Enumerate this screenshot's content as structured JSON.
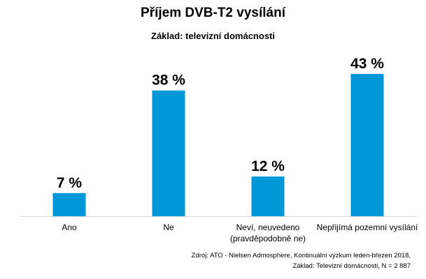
{
  "chart_data": {
    "type": "bar",
    "title": "Příjem DVB-T2 vysílání",
    "subtitle": "Základ: televizní domácnosti",
    "categories": [
      [
        "Ano"
      ],
      [
        "Ne"
      ],
      [
        "Neví, neuvedeno",
        "(pravděpodobně ne)"
      ],
      [
        "Nepřijímá pozemní vysílání"
      ]
    ],
    "values": [
      7,
      38,
      12,
      43
    ],
    "data_labels": [
      "7 %",
      "38 %",
      "12 %",
      "43 %"
    ],
    "ylim": [
      0,
      43
    ],
    "grid": false,
    "legend": "none",
    "bar_color": "#0097d8",
    "baseline_color": "#d9d9d9",
    "xlabel": "",
    "ylabel": ""
  },
  "source": {
    "line1": "Zdroj: ATO - Nielsen Admosphere, Kontinuální výzkum leden-březen 2018,",
    "line2": "Základ: Televizní domácnosti, N = 2 887"
  }
}
